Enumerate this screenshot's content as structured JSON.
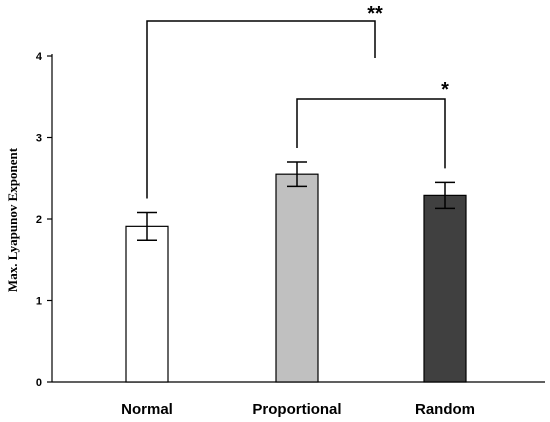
{
  "chart_data": {
    "type": "bar",
    "title": "",
    "xlabel": "",
    "ylabel": "Max. Lyapunov Exponent",
    "ylim": [
      0,
      4
    ],
    "yticks": [
      "0",
      "1",
      "2",
      "3",
      "4"
    ],
    "grid": false,
    "categories": [
      "Normal",
      "Proportional",
      "Random"
    ],
    "values": [
      1.91,
      2.55,
      2.29
    ],
    "error": [
      0.17,
      0.15,
      0.16
    ],
    "bar_colors": [
      "#ffffff",
      "#c0c0c0",
      "#404040"
    ],
    "significance": [
      {
        "from": 0,
        "to": 2,
        "label": "**",
        "level": 4.45
      },
      {
        "from": 1,
        "to": 2,
        "label": "*",
        "level": 3.5
      }
    ]
  }
}
